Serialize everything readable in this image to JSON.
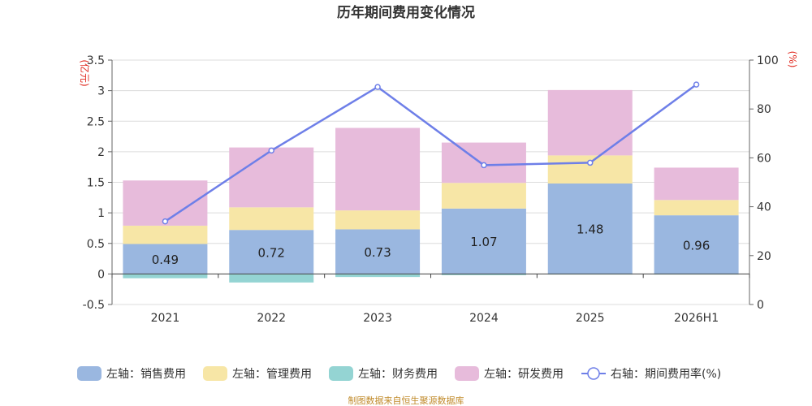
{
  "chart_data": {
    "type": "bar",
    "title": "历年期间费用变化情况",
    "categories": [
      "2021",
      "2022",
      "2023",
      "2024",
      "2025",
      "2026H1"
    ],
    "left_axis": {
      "unit": "(亿元)",
      "ylim": [
        -0.5,
        3.5
      ],
      "ticks": [
        "-0.5",
        "0",
        "0.5",
        "1",
        "1.5",
        "2",
        "2.5",
        "3",
        "3.5"
      ]
    },
    "right_axis": {
      "unit": "(%)",
      "ylim": [
        0,
        100
      ],
      "ticks": [
        "0",
        "20",
        "40",
        "60",
        "80",
        "100"
      ]
    },
    "series": [
      {
        "name": "左轴：销售费用",
        "axis": "left",
        "kind": "bar",
        "color": "#9ab7e0",
        "values": [
          0.49,
          0.72,
          0.73,
          1.07,
          1.48,
          0.96
        ]
      },
      {
        "name": "左轴：管理费用",
        "axis": "left",
        "kind": "bar",
        "color": "#f7e6a6",
        "values": [
          0.3,
          0.37,
          0.31,
          0.42,
          0.46,
          0.25
        ]
      },
      {
        "name": "左轴：财务费用",
        "axis": "left",
        "kind": "bar",
        "color": "#94d4d3",
        "values": [
          -0.07,
          -0.14,
          -0.05,
          -0.02,
          -0.01,
          -0.01
        ]
      },
      {
        "name": "左轴：研发费用",
        "axis": "left",
        "kind": "bar",
        "color": "#e7bbdb",
        "values": [
          0.74,
          0.98,
          1.35,
          0.66,
          1.07,
          0.53
        ]
      },
      {
        "name": "右轴：期间费用率(%)",
        "axis": "right",
        "kind": "line",
        "color": "#6e7fe8",
        "values": [
          34,
          63,
          89,
          57,
          58,
          90
        ]
      }
    ],
    "data_labels": [
      "0.49",
      "0.72",
      "0.73",
      "1.07",
      "1.48",
      "0.96"
    ],
    "source": "制图数据来自恒生聚源数据库",
    "grid": true,
    "legend_position": "bottom"
  }
}
